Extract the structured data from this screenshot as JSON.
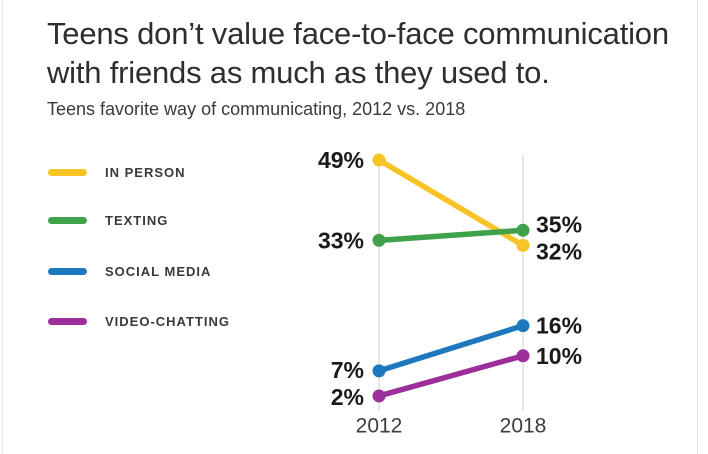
{
  "header": {
    "title_lines": [
      "Teens don’t value face-to-face communication",
      "with friends as much as they used to."
    ],
    "subtitle": "Teens favorite way of communicating, 2012 vs. 2018"
  },
  "chart_data": {
    "type": "line",
    "variant": "slope-chart",
    "title": "Teens don’t value face-to-face communication with friends as much as they used to.",
    "subtitle": "Teens favorite way of communicating, 2012 vs. 2018",
    "x": [
      "2012",
      "2018"
    ],
    "series": [
      {
        "name": "IN PERSON",
        "color": "#F7C325",
        "values": [
          49,
          32
        ]
      },
      {
        "name": "TEXTING",
        "color": "#3FA149",
        "values": [
          33,
          35
        ]
      },
      {
        "name": "SOCIAL MEDIA",
        "color": "#1E78BE",
        "values": [
          7,
          16
        ]
      },
      {
        "name": "VIDEO-CHATTING",
        "color": "#9C2F9C",
        "values": [
          2,
          10
        ]
      }
    ],
    "value_suffix": "%",
    "ylim": [
      0,
      50
    ],
    "grid": "vertical-only",
    "legend_position": "left",
    "data_labels": "all-points"
  }
}
